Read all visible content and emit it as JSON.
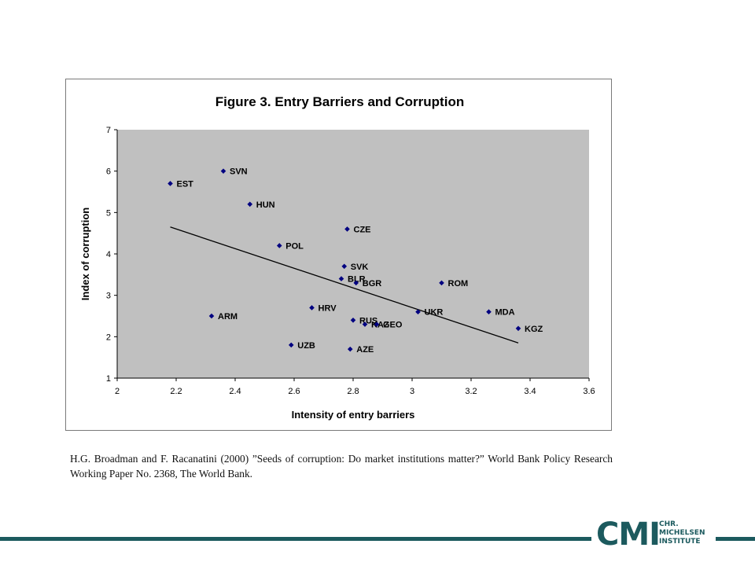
{
  "chart_data": {
    "type": "scatter",
    "title": "Figure 3.  Entry Barriers and Corruption",
    "xlabel": "Intensity of entry barriers",
    "ylabel": "Index of corruption",
    "xlim": [
      2,
      3.6
    ],
    "ylim": [
      1,
      7
    ],
    "xticks": [
      "2",
      "2.2",
      "2.4",
      "2.6",
      "2.8",
      "3",
      "3.2",
      "3.4",
      "3.6"
    ],
    "yticks": [
      "1",
      "2",
      "3",
      "4",
      "5",
      "6",
      "7"
    ],
    "grid": false,
    "plot_background": "#c0c0c0",
    "marker_color": "#000080",
    "points": [
      {
        "label": "EST",
        "x": 2.18,
        "y": 5.7
      },
      {
        "label": "SVN",
        "x": 2.36,
        "y": 6.0
      },
      {
        "label": "HUN",
        "x": 2.45,
        "y": 5.2
      },
      {
        "label": "POL",
        "x": 2.55,
        "y": 4.2
      },
      {
        "label": "CZE",
        "x": 2.78,
        "y": 4.6
      },
      {
        "label": "SVK",
        "x": 2.77,
        "y": 3.7
      },
      {
        "label": "BLR",
        "x": 2.76,
        "y": 3.4
      },
      {
        "label": "BGR",
        "x": 2.81,
        "y": 3.3
      },
      {
        "label": "ROM",
        "x": 3.1,
        "y": 3.3
      },
      {
        "label": "HRV",
        "x": 2.66,
        "y": 2.7
      },
      {
        "label": "ARM",
        "x": 2.32,
        "y": 2.5
      },
      {
        "label": "RUS",
        "x": 2.8,
        "y": 2.4
      },
      {
        "label": "KAZ",
        "x": 2.84,
        "y": 2.3
      },
      {
        "label": "GEO",
        "x": 2.88,
        "y": 2.3
      },
      {
        "label": "UKR",
        "x": 3.02,
        "y": 2.6
      },
      {
        "label": "MDA",
        "x": 3.26,
        "y": 2.6
      },
      {
        "label": "KGZ",
        "x": 3.36,
        "y": 2.2
      },
      {
        "label": "UZB",
        "x": 2.59,
        "y": 1.8
      },
      {
        "label": "AZE",
        "x": 2.79,
        "y": 1.7
      }
    ],
    "trendline": {
      "x": [
        2.18,
        3.36
      ],
      "y": [
        4.65,
        1.85
      ]
    }
  },
  "caption": "H.G. Broadman and F. Racanatini (2000) ”Seeds of corruption: Do market institutions matter?” World Bank Policy Research Working Paper No. 2368, The World Bank.",
  "logo": {
    "mark": "CMI",
    "line1": "CHR.",
    "line2": "MICHELSEN",
    "line3": "INSTITUTE",
    "color": "#1c5a5e"
  }
}
